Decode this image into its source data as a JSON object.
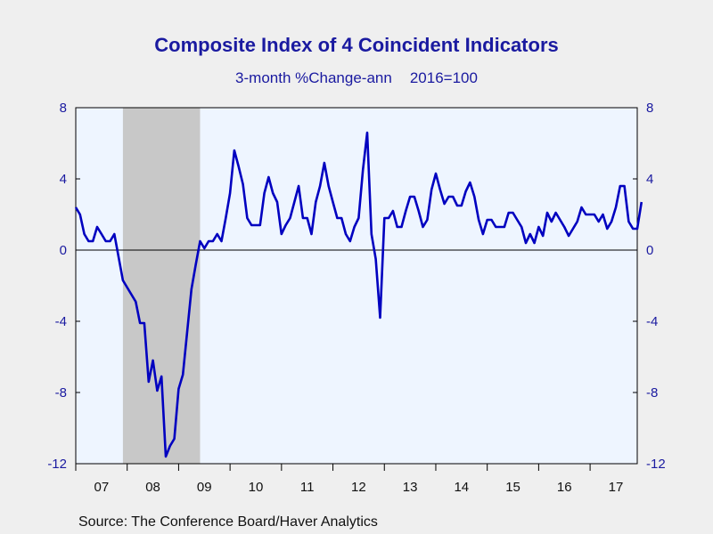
{
  "chart_data": {
    "type": "line",
    "title": "Composite Index of 4 Coincident Indicators",
    "subtitle_left": "3-month %Change-ann",
    "subtitle_right": "2016=100",
    "source": "Source:  The Conference Board/Haver Analytics",
    "x_labels": [
      "07",
      "08",
      "09",
      "10",
      "11",
      "12",
      "13",
      "14",
      "15",
      "16",
      "17"
    ],
    "x_start": 2007.0,
    "x_step_months": 1,
    "ylim": [
      -12,
      8
    ],
    "yticks": [
      -12,
      -8,
      -4,
      0,
      4,
      8
    ],
    "recession_shading": {
      "start": 2007.917,
      "end": 2009.417
    },
    "series": [
      {
        "color": "#0000c0",
        "values": [
          2.4,
          2.0,
          0.9,
          0.5,
          0.5,
          1.3,
          0.9,
          0.5,
          0.5,
          0.9,
          -0.4,
          -1.7,
          -2.1,
          -2.5,
          -2.9,
          -4.1,
          -4.1,
          -7.4,
          -6.2,
          -7.9,
          -7.1,
          -11.6,
          -11.0,
          -10.6,
          -7.8,
          -7.0,
          -4.6,
          -2.2,
          -0.8,
          0.5,
          0.1,
          0.5,
          0.5,
          0.9,
          0.5,
          1.8,
          3.2,
          5.6,
          4.7,
          3.7,
          1.8,
          1.4,
          1.4,
          1.4,
          3.2,
          4.1,
          3.2,
          2.7,
          0.9,
          1.4,
          1.8,
          2.7,
          3.6,
          1.8,
          1.8,
          0.9,
          2.7,
          3.6,
          4.9,
          3.6,
          2.7,
          1.8,
          1.8,
          0.9,
          0.5,
          1.3,
          1.8,
          4.5,
          6.6,
          0.9,
          -0.5,
          -3.8,
          1.8,
          1.8,
          2.2,
          1.3,
          1.3,
          2.2,
          3.0,
          3.0,
          2.2,
          1.3,
          1.7,
          3.4,
          4.3,
          3.4,
          2.6,
          3.0,
          3.0,
          2.5,
          2.5,
          3.3,
          3.8,
          3.0,
          1.7,
          0.9,
          1.7,
          1.7,
          1.3,
          1.3,
          1.3,
          2.1,
          2.1,
          1.7,
          1.3,
          0.4,
          0.9,
          0.4,
          1.3,
          0.8,
          2.1,
          1.6,
          2.1,
          1.7,
          1.3,
          0.8,
          1.2,
          1.6,
          2.4,
          2.0,
          2.0,
          2.0,
          1.6,
          2.0,
          1.2,
          1.6,
          2.4,
          3.6,
          3.6,
          1.6,
          1.2,
          1.2,
          2.7
        ]
      }
    ]
  }
}
